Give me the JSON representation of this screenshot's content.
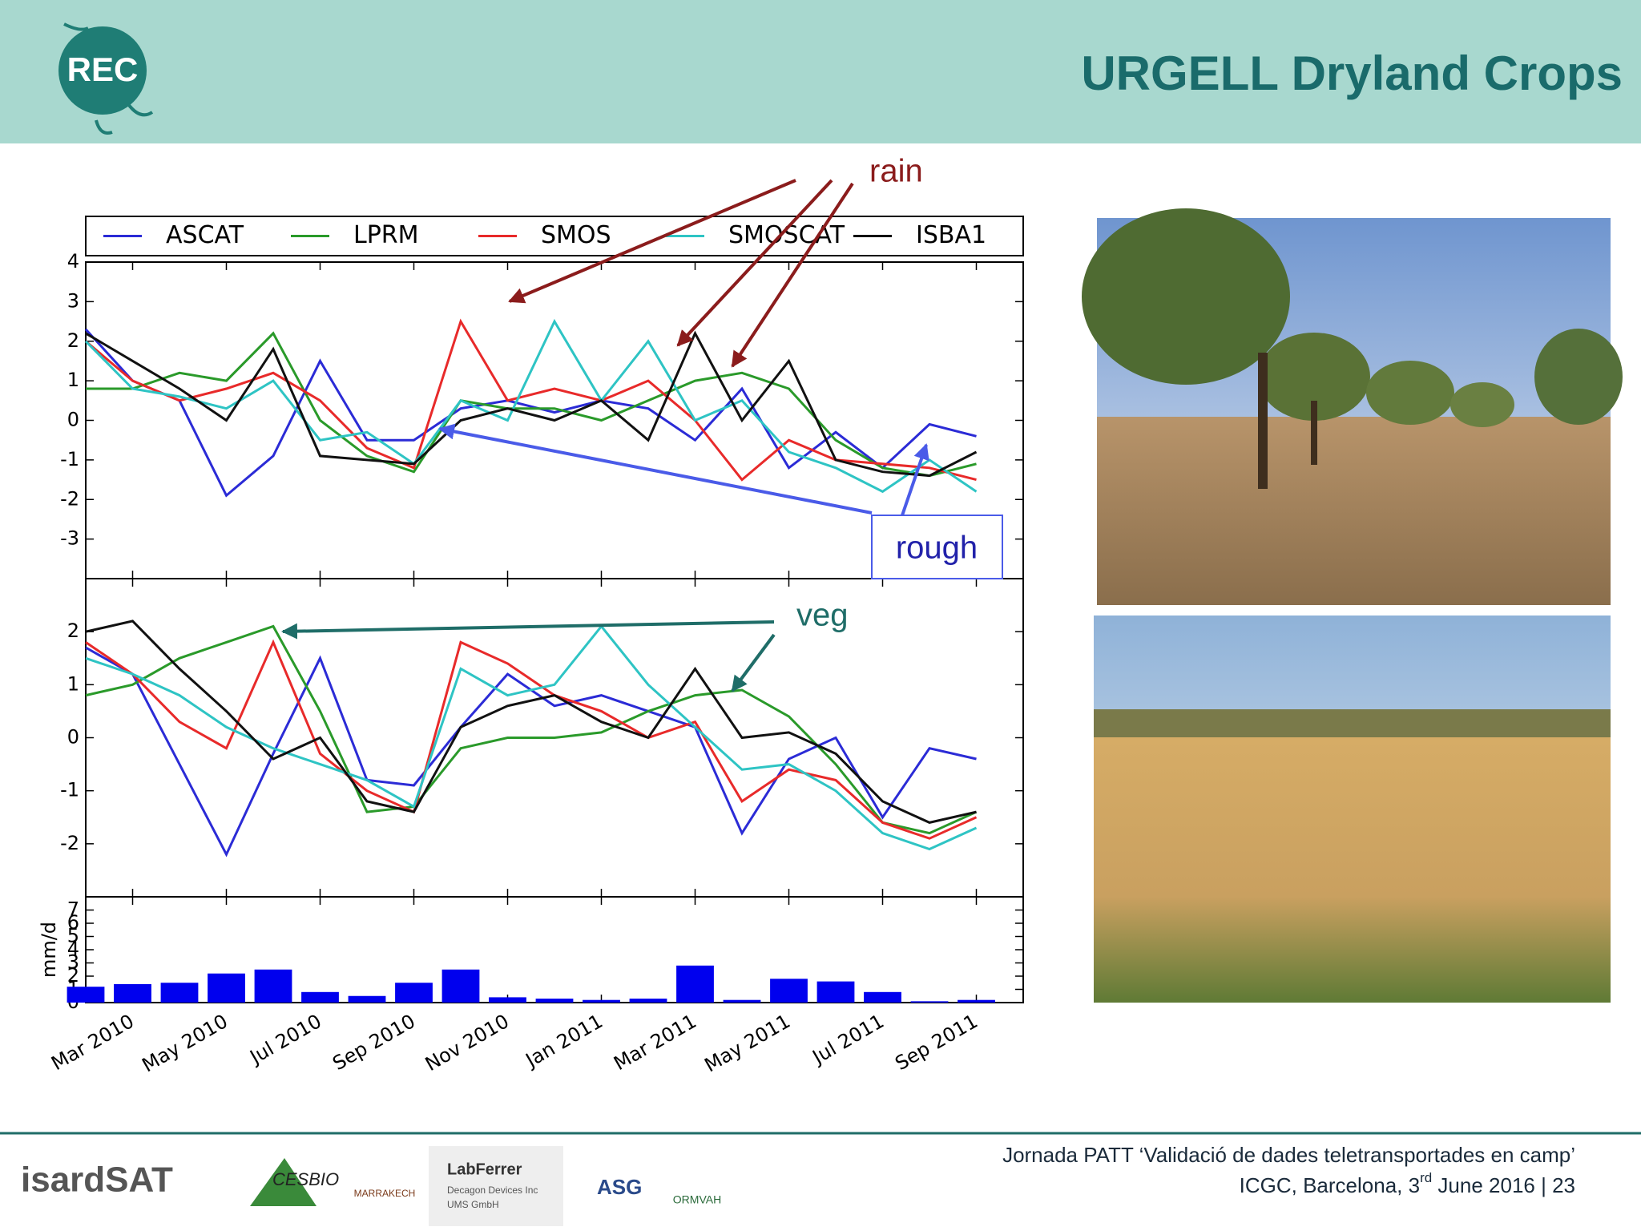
{
  "header": {
    "title": "URGELL Dryland Crops",
    "logo": "REC"
  },
  "chart_data": [
    {
      "type": "line",
      "legend": "top",
      "x": [
        "2010-02",
        "2010-03",
        "2010-04",
        "2010-05",
        "2010-06",
        "2010-07",
        "2010-08",
        "2010-09",
        "2010-10",
        "2010-11",
        "2010-12",
        "2011-01",
        "2011-02",
        "2011-03",
        "2011-04",
        "2011-05",
        "2011-06",
        "2011-07",
        "2011-08",
        "2011-09"
      ],
      "xlim": [
        "2010-02",
        "2011-10"
      ],
      "ylim": [
        -4,
        4
      ],
      "yticks": [
        -3,
        -2,
        -1,
        0,
        1,
        2,
        3,
        4
      ],
      "series": [
        {
          "name": "ASCAT",
          "color": "#2b2bd6",
          "values": [
            2.3,
            1.0,
            0.5,
            -1.9,
            -0.9,
            1.5,
            -0.5,
            -0.5,
            0.3,
            0.5,
            0.2,
            0.5,
            0.3,
            -0.5,
            0.8,
            -1.2,
            -0.3,
            -1.2,
            -0.1,
            -0.4
          ]
        },
        {
          "name": "LPRM",
          "color": "#2a9a2a",
          "values": [
            0.8,
            0.8,
            1.2,
            1.0,
            2.2,
            0.0,
            -0.9,
            -1.3,
            0.5,
            0.3,
            0.3,
            0.0,
            0.5,
            1.0,
            1.2,
            0.8,
            -0.5,
            -1.2,
            -1.4,
            -1.1
          ]
        },
        {
          "name": "SMOS",
          "color": "#e82a2a",
          "values": [
            2.0,
            1.0,
            0.5,
            0.8,
            1.2,
            0.5,
            -0.7,
            -1.2,
            2.5,
            0.5,
            0.8,
            0.5,
            1.0,
            0.0,
            -1.5,
            -0.5,
            -1.0,
            -1.1,
            -1.2,
            -1.5
          ]
        },
        {
          "name": "SMOSCAT",
          "color": "#2ec4c4",
          "values": [
            2.0,
            0.8,
            0.6,
            0.3,
            1.0,
            -0.5,
            -0.3,
            -1.1,
            0.5,
            0.0,
            2.5,
            0.5,
            2.0,
            0.0,
            0.5,
            -0.8,
            -1.2,
            -1.8,
            -1.0,
            -1.8
          ]
        },
        {
          "name": "ISBA1",
          "color": "#111111",
          "values": [
            2.2,
            1.5,
            0.8,
            0.0,
            1.8,
            -0.9,
            -1.0,
            -1.1,
            0.0,
            0.3,
            0.0,
            0.5,
            -0.5,
            2.2,
            0.0,
            1.5,
            -1.0,
            -1.3,
            -1.4,
            -0.8
          ]
        }
      ]
    },
    {
      "type": "line",
      "x": [
        "2010-02",
        "2010-03",
        "2010-04",
        "2010-05",
        "2010-06",
        "2010-07",
        "2010-08",
        "2010-09",
        "2010-10",
        "2010-11",
        "2010-12",
        "2011-01",
        "2011-02",
        "2011-03",
        "2011-04",
        "2011-05",
        "2011-06",
        "2011-07",
        "2011-08",
        "2011-09"
      ],
      "xlim": [
        "2010-02",
        "2011-10"
      ],
      "ylim": [
        -3,
        3
      ],
      "yticks": [
        -2,
        -1,
        0,
        1,
        2
      ],
      "series": [
        {
          "color": "#2b2bd6",
          "values": [
            1.7,
            1.2,
            -0.5,
            -2.2,
            -0.3,
            1.5,
            -0.8,
            -0.9,
            0.2,
            1.2,
            0.6,
            0.8,
            0.5,
            0.2,
            -1.8,
            -0.4,
            0.0,
            -1.5,
            -0.2,
            -0.4
          ]
        },
        {
          "color": "#2a9a2a",
          "values": [
            0.8,
            1.0,
            1.5,
            1.8,
            2.1,
            0.5,
            -1.4,
            -1.3,
            -0.2,
            0.0,
            0.0,
            0.1,
            0.5,
            0.8,
            0.9,
            0.4,
            -0.5,
            -1.6,
            -1.8,
            -1.4
          ]
        },
        {
          "color": "#e82a2a",
          "values": [
            1.8,
            1.2,
            0.3,
            -0.2,
            1.8,
            -0.3,
            -1.0,
            -1.4,
            1.8,
            1.4,
            0.8,
            0.5,
            0.0,
            0.3,
            -1.2,
            -0.6,
            -0.8,
            -1.6,
            -1.9,
            -1.5
          ]
        },
        {
          "color": "#2ec4c4",
          "values": [
            1.5,
            1.2,
            0.8,
            0.2,
            -0.2,
            -0.5,
            -0.8,
            -1.3,
            1.3,
            0.8,
            1.0,
            2.1,
            1.0,
            0.2,
            -0.6,
            -0.5,
            -1.0,
            -1.8,
            -2.1,
            -1.7
          ]
        },
        {
          "color": "#111111",
          "values": [
            2.0,
            2.2,
            1.3,
            0.5,
            -0.4,
            0.0,
            -1.2,
            -1.4,
            0.2,
            0.6,
            0.8,
            0.3,
            0.0,
            1.3,
            0.0,
            0.1,
            -0.3,
            -1.2,
            -1.6,
            -1.4
          ]
        }
      ]
    },
    {
      "type": "bar",
      "y_label": "mm/d",
      "color": "#0000ee",
      "x": [
        "2010-02",
        "2010-03",
        "2010-04",
        "2010-05",
        "2010-06",
        "2010-07",
        "2010-08",
        "2010-09",
        "2010-10",
        "2010-11",
        "2010-12",
        "2011-01",
        "2011-02",
        "2011-03",
        "2011-04",
        "2011-05",
        "2011-06",
        "2011-07",
        "2011-08",
        "2011-09"
      ],
      "xlim": [
        "2010-02",
        "2011-10"
      ],
      "values": [
        1.2,
        1.4,
        1.5,
        2.2,
        2.5,
        0.8,
        0.5,
        1.5,
        2.5,
        0.4,
        0.3,
        0.2,
        0.3,
        2.8,
        0.2,
        1.8,
        1.6,
        0.8,
        0.1,
        0.2
      ],
      "ylim": [
        0,
        8
      ],
      "yticks": [
        0,
        1,
        2,
        3,
        4,
        5,
        6,
        7
      ],
      "xticks": [
        {
          "value": "2010-03",
          "label": "Mar 2010"
        },
        {
          "value": "2010-05",
          "label": "May 2010"
        },
        {
          "value": "2010-07",
          "label": "Jul 2010"
        },
        {
          "value": "2010-09",
          "label": "Sep 2010"
        },
        {
          "value": "2010-11",
          "label": "Nov 2010"
        },
        {
          "value": "2011-01",
          "label": "Jan 2011"
        },
        {
          "value": "2011-03",
          "label": "Mar 2011"
        },
        {
          "value": "2011-05",
          "label": "May 2011"
        },
        {
          "value": "2011-07",
          "label": "Jul 2011"
        },
        {
          "value": "2011-09",
          "label": "Sep 2011"
        }
      ]
    }
  ],
  "annotations": {
    "rain": "rain",
    "rough": "rough",
    "veg": "veg"
  },
  "footer": {
    "line1": "Jornada PATT ‘Validació de dades teletransportades en camp’",
    "line2": [
      "ICGC, Barcelona, 3",
      "rd",
      " June 2016 | 23"
    ]
  },
  "logos": [
    "isardSAT",
    "CESBIO",
    "MARRAKECH",
    "LabFerrer",
    "Decagon Devices Inc",
    "UMS GmbH",
    "ASG",
    "ORMVAH"
  ]
}
